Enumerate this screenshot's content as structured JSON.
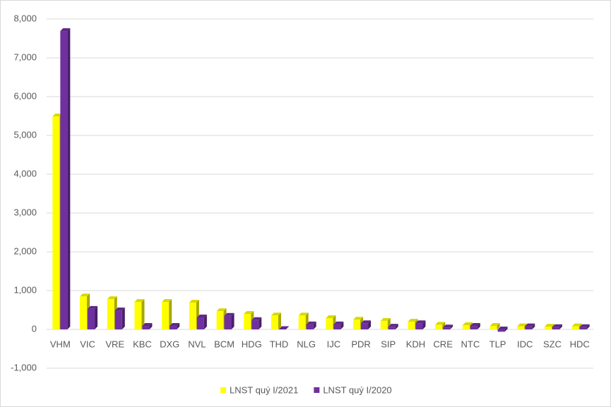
{
  "chart_data": {
    "type": "bar",
    "categories": [
      "VHM",
      "VIC",
      "VRE",
      "KBC",
      "DXG",
      "NVL",
      "BCM",
      "HDG",
      "THD",
      "NLG",
      "IJC",
      "PDR",
      "SIP",
      "KDH",
      "CRE",
      "NTC",
      "TLP",
      "IDC",
      "SZC",
      "HDC"
    ],
    "series": [
      {
        "name": "LNST quý I/2021",
        "color": "#ffff00",
        "values": [
          5490,
          850,
          780,
          710,
          710,
          690,
          470,
          400,
          360,
          360,
          290,
          250,
          220,
          200,
          120,
          110,
          90,
          80,
          70,
          80
        ]
      },
      {
        "name": "LNST quý I/2020",
        "color": "#7030a0",
        "values": [
          7690,
          530,
          490,
          90,
          90,
          310,
          350,
          240,
          10,
          130,
          130,
          160,
          70,
          160,
          50,
          90,
          -60,
          80,
          60,
          60
        ]
      }
    ],
    "ylim": [
      -1000,
      8000
    ],
    "yticks": [
      {
        "value": -1000,
        "label": "-1,000"
      },
      0,
      {
        "value": 1000,
        "label": "1,000"
      },
      {
        "value": 2000,
        "label": "2,000"
      },
      {
        "value": 3000,
        "label": "3,000"
      },
      {
        "value": 4000,
        "label": "4,000"
      },
      {
        "value": 5000,
        "label": "5,000"
      },
      {
        "value": 6000,
        "label": "6,000"
      },
      {
        "value": 7000,
        "label": "7,000"
      },
      {
        "value": 8000,
        "label": "8,000"
      }
    ],
    "grid": true,
    "legend": "bottom"
  }
}
